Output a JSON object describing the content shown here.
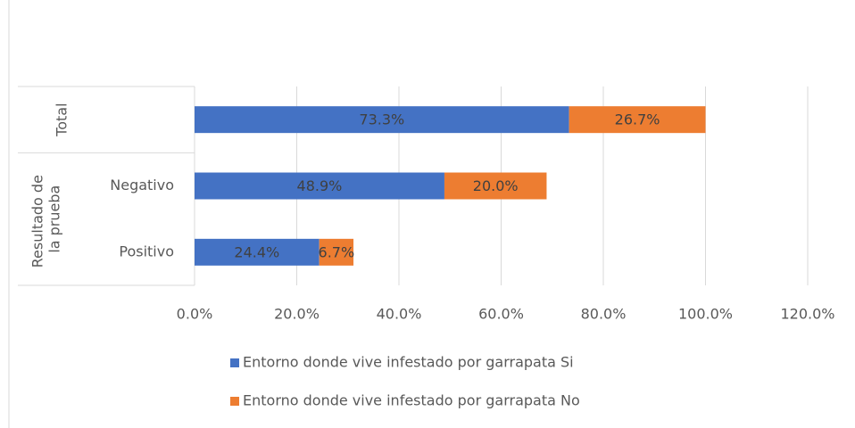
{
  "chart_data": {
    "type": "stacked_bar_horizontal",
    "groups": [
      {
        "name": "Total",
        "size": 1
      },
      {
        "name": "Resultado de la prueba",
        "size": 2
      }
    ],
    "categories": [
      null,
      "Negativo",
      "Positivo"
    ],
    "series": [
      {
        "name": "Entorno donde vive infestado por garrapata Si",
        "color": "#4472c4",
        "values": [
          73.3,
          48.9,
          24.4
        ],
        "value_labels": [
          "73.3%",
          "48.9%",
          "24.4%"
        ]
      },
      {
        "name": "Entorno donde vive infestado por garrapata No",
        "color": "#ed7d31",
        "values": [
          26.7,
          20.0,
          6.7
        ],
        "value_labels": [
          "26.7%",
          "20.0%",
          "6.7%"
        ]
      }
    ],
    "xlim": [
      0,
      120
    ],
    "xticks": [
      {
        "value": 0,
        "label": "0.0%"
      },
      {
        "value": 20,
        "label": "20.0%"
      },
      {
        "value": 40,
        "label": "40.0%"
      },
      {
        "value": 60,
        "label": "60.0%"
      },
      {
        "value": 80,
        "label": "80.0%"
      },
      {
        "value": 100,
        "label": "100.0%"
      },
      {
        "value": 120,
        "label": "120.0%"
      }
    ],
    "grid": true,
    "legend": "bottom"
  }
}
